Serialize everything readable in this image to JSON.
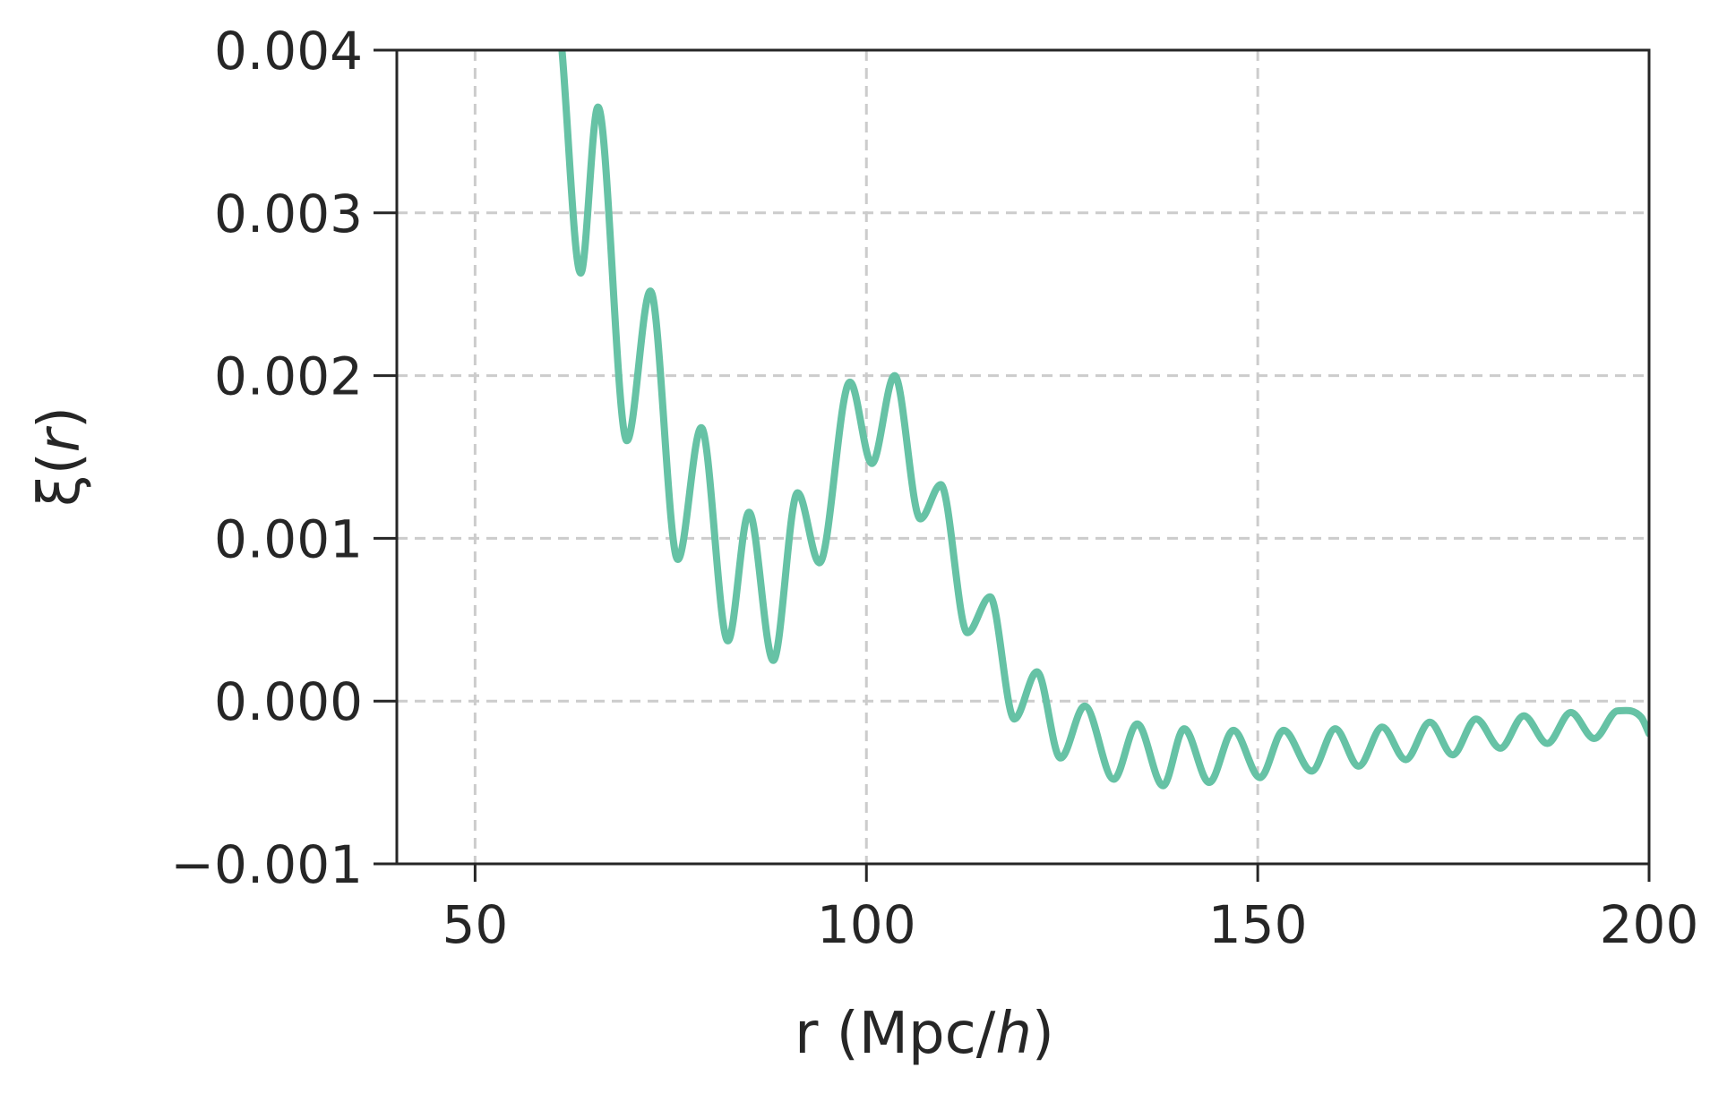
{
  "chart_data": {
    "type": "line",
    "title": "",
    "xlabel": {
      "prefix": "r (Mpc/",
      "italic": "h",
      "suffix": ")"
    },
    "ylabel": {
      "prefix": "ξ(",
      "italic": "r",
      "suffix": ")"
    },
    "xlim": [
      40,
      200
    ],
    "ylim": [
      -0.001,
      0.004
    ],
    "x_ticks": [
      50,
      100,
      150,
      200
    ],
    "x_tick_labels": [
      "50",
      "100",
      "150",
      "200"
    ],
    "y_ticks": [
      -0.001,
      0.0,
      0.001,
      0.002,
      0.003,
      0.004
    ],
    "y_tick_labels": [
      "−0.001",
      "0.000",
      "0.001",
      "0.002",
      "0.003",
      "0.004"
    ],
    "grid": true,
    "grid_style": "dashed",
    "colors": {
      "line": "#66c2a5",
      "axis": "#262626",
      "grid": "#cccccc"
    },
    "series": [
      {
        "x": [
          61.1,
          63.5,
          65.7,
          69.4,
          72.4,
          75.9,
          78.9,
          82.3,
          85.0,
          88.1,
          91.2,
          94.0,
          97.9,
          100.7,
          103.6,
          106.9,
          109.5,
          112.9,
          115.8,
          118.9,
          121.8,
          124.8,
          127.9,
          131.6,
          134.6,
          137.9,
          140.6,
          143.8,
          146.9,
          150.3,
          153.3,
          156.9,
          159.9,
          162.9,
          165.9,
          168.9,
          172.0,
          174.9,
          177.9,
          181.0,
          184.0,
          187.0,
          190.0,
          193.0,
          196.0,
          199.0,
          200.0
        ],
        "y": [
          0.004,
          0.00263,
          0.00365,
          0.0016,
          0.00252,
          0.00087,
          0.00168,
          0.00037,
          0.00116,
          0.00025,
          0.00128,
          0.00085,
          0.00196,
          0.00146,
          0.002,
          0.00112,
          0.00133,
          0.00042,
          0.00064,
          -0.00011,
          0.00018,
          -0.00035,
          -3e-05,
          -0.00048,
          -0.00014,
          -0.00052,
          -0.00017,
          -0.0005,
          -0.00018,
          -0.00047,
          -0.00018,
          -0.00043,
          -0.00017,
          -0.0004,
          -0.00016,
          -0.00036,
          -0.00013,
          -0.00033,
          -0.00011,
          -0.00029,
          -9e-05,
          -0.00026,
          -7e-05,
          -0.00023,
          -6e-05,
          -0.0001,
          -0.0002
        ]
      }
    ]
  }
}
